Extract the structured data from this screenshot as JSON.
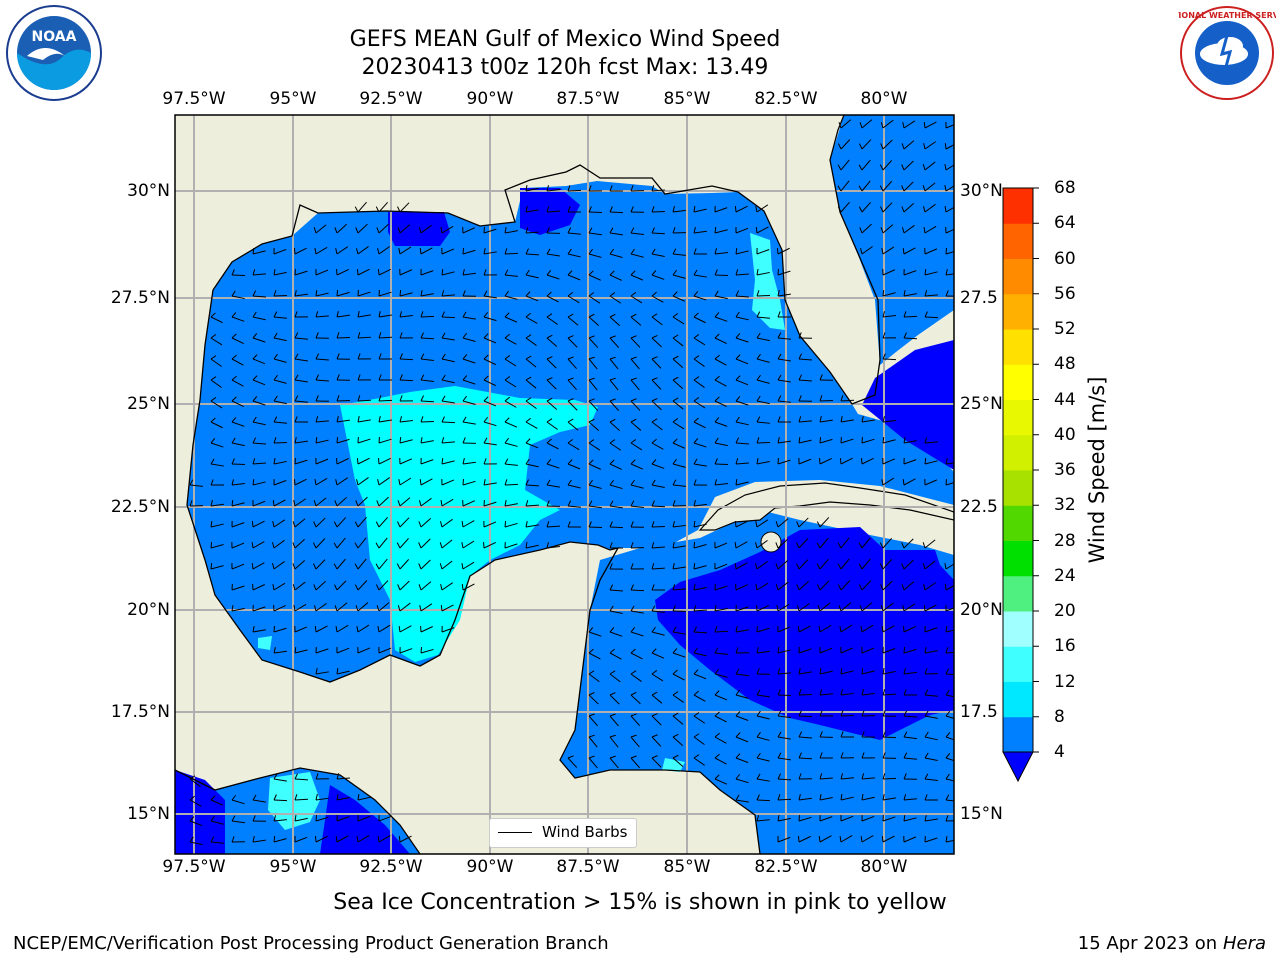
{
  "title": {
    "line1": "GEFS MEAN Gulf of Mexico Wind Speed",
    "line2": "20230413 t00z 120h fcst   Max: 13.49"
  },
  "logos": {
    "left": {
      "name": "noaa-logo",
      "text": "NOAA"
    },
    "right": {
      "name": "nws-logo",
      "text": "NATIONAL WEATHER SERVICE"
    }
  },
  "axes": {
    "lon_labels": [
      "97.5°W",
      "95°W",
      "92.5°W",
      "90°W",
      "87.5°W",
      "85°W",
      "82.5°W",
      "80°W"
    ],
    "lat_labels_left": [
      "30°N",
      "27.5°N",
      "25°N",
      "22.5°N",
      "20°N",
      "17.5°N",
      "15°N"
    ],
    "lat_labels_right": [
      "30°N",
      "27.5",
      "25°N",
      "22.5",
      "20°N",
      "17.5",
      "15°N"
    ]
  },
  "colorbar": {
    "label": "Wind Speed [m/s]",
    "ticks": [
      "4",
      "8",
      "12",
      "16",
      "20",
      "24",
      "28",
      "32",
      "36",
      "40",
      "44",
      "48",
      "52",
      "56",
      "60",
      "64",
      "68"
    ],
    "colors": [
      "#0080ff",
      "#00e8ff",
      "#40ffff",
      "#a0ffff",
      "#50f080",
      "#00e000",
      "#50d800",
      "#a8e000",
      "#d0f000",
      "#e8f800",
      "#ffff00",
      "#ffe000",
      "#ffb000",
      "#ff8c00",
      "#ff6400",
      "#ff3000"
    ],
    "under_color": "#0000ff"
  },
  "legend": {
    "label": "Wind Barbs"
  },
  "caption": "Sea Ice Concentration > 15% is shown in pink to yellow",
  "footer": {
    "left": "NCEP/EMC/Verification Post Processing Product Generation Branch",
    "right_date": "15 Apr 2023 on",
    "right_host": "Hera"
  },
  "map_colors": {
    "land": "#eeeedc",
    "speed_4_8": "#0080ff",
    "speed_8_12": "#00ffff",
    "speed_12_16": "#40ffff",
    "speed_under_4": "#0000ff"
  }
}
